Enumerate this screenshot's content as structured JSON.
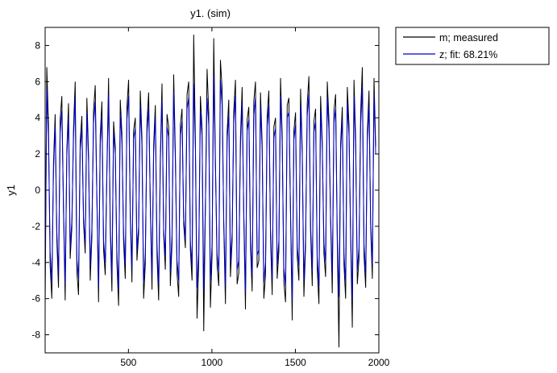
{
  "chart_data": {
    "type": "line",
    "title": "y1. (sim)",
    "xlabel": "",
    "ylabel": "y1",
    "xlim": [
      1,
      2000
    ],
    "ylim": [
      -9,
      9
    ],
    "x_ticks": [
      500,
      1000,
      1500,
      2000
    ],
    "y_ticks": [
      -8,
      -6,
      -4,
      -2,
      0,
      2,
      4,
      6,
      8
    ],
    "grid": false,
    "legend_position": "outside-top-right",
    "series": [
      {
        "name": "m; measured",
        "color": "#000000",
        "x_start": 1,
        "x_step": 10,
        "values": [
          -6.5,
          6.8,
          3.6,
          -4.2,
          -6.0,
          1.5,
          4.2,
          -2.8,
          -5.4,
          3.9,
          5.2,
          -1.2,
          -6.1,
          2.2,
          4.8,
          -3.8,
          -2.1,
          3.4,
          6.0,
          -4.5,
          -5.8,
          2.7,
          4.1,
          -1.8,
          -3.5,
          5.1,
          2.0,
          -5.0,
          -2.6,
          4.4,
          5.8,
          -0.5,
          -6.2,
          3.0,
          4.9,
          -3.3,
          -4.7,
          1.2,
          6.2,
          -2.2,
          -5.6,
          3.8,
          2.4,
          -4.0,
          -6.4,
          5.0,
          3.1,
          -2.9,
          -4.9,
          4.6,
          6.1,
          -1.5,
          -5.1,
          3.3,
          4.0,
          -3.9,
          -2.4,
          5.5,
          2.9,
          -6.0,
          -4.1,
          3.7,
          5.4,
          -0.9,
          -5.5,
          2.5,
          4.7,
          -3.6,
          -6.1,
          1.8,
          5.9,
          -2.5,
          -4.4,
          4.2,
          3.5,
          -5.3,
          -3.0,
          6.4,
          2.1,
          -4.6,
          -5.9,
          3.6,
          4.5,
          -1.9,
          -3.2,
          5.3,
          6.0,
          -3.3,
          -5.0,
          8.6,
          2.8,
          -7.1,
          -4.0,
          5.2,
          3.4,
          -7.8,
          -1.0,
          6.7,
          4.3,
          -6.5,
          -3.6,
          8.4,
          1.6,
          -4.2,
          -5.3,
          7.2,
          5.6,
          -2.0,
          -6.3,
          3.2,
          5.0,
          -4.8,
          -2.8,
          4.4,
          6.1,
          -5.2,
          -4.6,
          2.9,
          5.7,
          -1.6,
          -6.6,
          3.9,
          4.6,
          -3.1,
          -5.6,
          4.9,
          6.0,
          -4.3,
          -3.9,
          5.4,
          2.6,
          -6.0,
          -4.7,
          4.1,
          5.5,
          -2.6,
          -5.8,
          3.5,
          4.0,
          -4.9,
          -3.4,
          6.2,
          3.0,
          -5.1,
          -6.2,
          4.7,
          5.1,
          -1.4,
          -7.2,
          3.3,
          4.3,
          -3.7,
          -5.0,
          5.6,
          2.3,
          -5.9,
          -3.1,
          4.8,
          6.3,
          -2.3,
          -5.3,
          3.8,
          4.5,
          -4.4,
          -6.3,
          5.2,
          2.7,
          -3.5,
          -4.8,
          6.0,
          3.9,
          -1.8,
          -5.7,
          4.4,
          5.3,
          -3.0,
          -8.7,
          2.6,
          4.6,
          -4.1,
          -6.0,
          5.7,
          3.6,
          -2.7,
          -7.6,
          6.1,
          2.9,
          -5.2,
          -3.8,
          4.3,
          6.8,
          -3.6,
          -5.4,
          3.2,
          5.5,
          -2.1,
          -4.9,
          6.2,
          2.4
        ]
      },
      {
        "name": "z; fit: 68.21%",
        "color": "#0000cc",
        "x_start": 1,
        "x_step": 10,
        "values": [
          -4.8,
          5.6,
          2.8,
          -3.4,
          -5.1,
          1.1,
          3.5,
          -2.3,
          -4.6,
          3.2,
          4.4,
          -0.9,
          -5.2,
          1.8,
          4.0,
          -3.2,
          -1.7,
          2.9,
          5.1,
          -3.8,
          -4.9,
          2.2,
          3.4,
          -1.5,
          -2.9,
          4.3,
          1.6,
          -4.2,
          -2.1,
          3.7,
          4.9,
          -0.4,
          -5.3,
          2.5,
          4.1,
          -2.8,
          -4.0,
          1.0,
          5.3,
          -1.8,
          -4.8,
          3.2,
          2.0,
          -3.4,
          -5.5,
          4.2,
          2.6,
          -2.4,
          -4.1,
          3.9,
          5.2,
          -1.2,
          -4.3,
          2.8,
          3.4,
          -3.3,
          -2.0,
          4.7,
          2.4,
          -5.1,
          -3.5,
          3.1,
          4.6,
          -0.7,
          -4.7,
          2.1,
          4.0,
          -3.0,
          -5.2,
          1.5,
          5.0,
          -2.1,
          -3.7,
          3.5,
          2.9,
          -4.5,
          -2.5,
          5.4,
          1.7,
          -3.9,
          -5.0,
          3.0,
          3.8,
          -1.6,
          -2.7,
          4.5,
          5.1,
          -2.8,
          -4.2,
          5.9,
          2.3,
          -5.4,
          -3.4,
          4.4,
          2.9,
          -5.6,
          -0.8,
          5.1,
          3.6,
          -5.0,
          -3.0,
          6.3,
          1.3,
          -3.5,
          -4.5,
          6.1,
          4.7,
          -1.7,
          -5.3,
          2.7,
          4.2,
          -4.0,
          -2.3,
          3.7,
          5.2,
          -4.4,
          -3.9,
          2.4,
          4.8,
          -1.3,
          -5.6,
          3.3,
          3.9,
          -2.6,
          -4.7,
          4.1,
          5.1,
          -3.6,
          -3.3,
          4.6,
          2.2,
          -5.1,
          -4.0,
          3.5,
          4.7,
          -2.2,
          -4.9,
          2.9,
          3.4,
          -4.1,
          -2.8,
          5.2,
          2.5,
          -4.3,
          -5.3,
          4.0,
          4.3,
          -1.2,
          -6.1,
          2.8,
          3.6,
          -3.1,
          -4.2,
          4.7,
          1.9,
          -5.0,
          -2.6,
          4.1,
          5.3,
          -1.9,
          -4.5,
          3.2,
          3.8,
          -3.7,
          -5.3,
          4.4,
          2.3,
          -2.9,
          -4.0,
          5.1,
          3.3,
          -1.5,
          -4.8,
          3.7,
          4.5,
          -2.5,
          -5.9,
          2.2,
          3.9,
          -3.5,
          -5.1,
          4.8,
          3.0,
          -2.3,
          -6.0,
          5.2,
          2.4,
          -4.4,
          -3.2,
          3.6,
          5.7,
          -3.0,
          -4.6,
          2.7,
          4.6,
          -1.8,
          -4.1,
          5.3,
          2.0
        ]
      }
    ]
  }
}
